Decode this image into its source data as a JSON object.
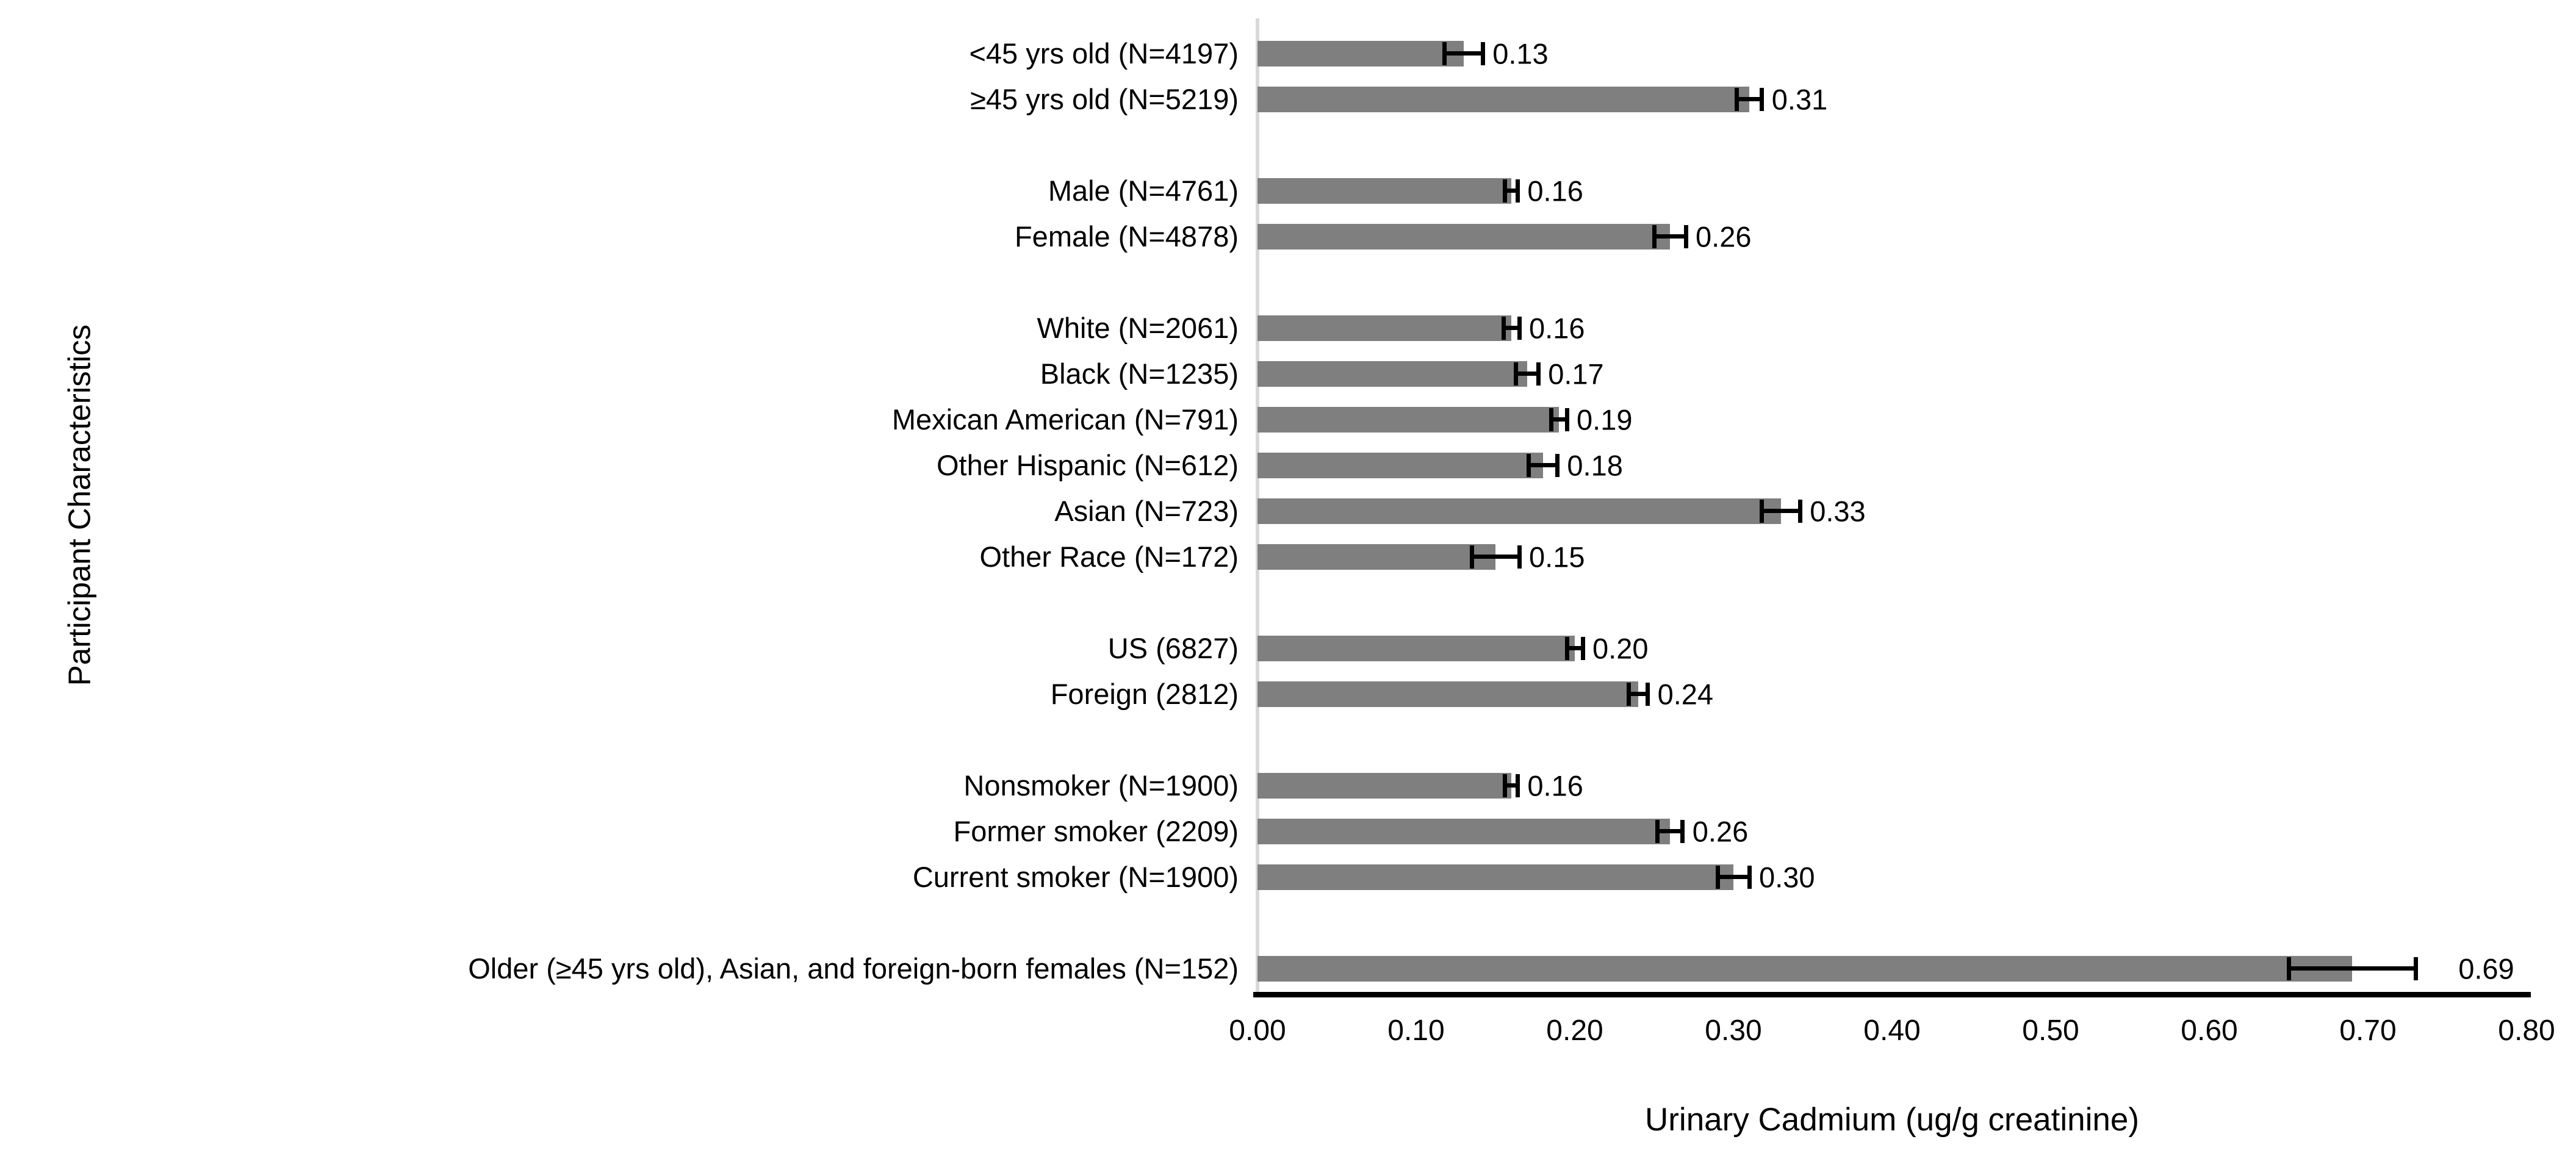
{
  "chart_data": {
    "type": "bar",
    "orientation": "horizontal",
    "title": "",
    "xlabel": "Urinary Cadmium (ug/g creatinine)",
    "ylabel": "Participant Characteristics",
    "xlim": [
      0.0,
      0.8
    ],
    "xticks": [
      "0.00",
      "0.10",
      "0.20",
      "0.30",
      "0.40",
      "0.50",
      "0.60",
      "0.70",
      "0.80"
    ],
    "grid": false,
    "legend": false,
    "bar_color": "#7F7F7F",
    "error_bar_color": "#000000",
    "zero_line_color": "#D9D9D9",
    "axis_line_color": "#000000",
    "groups": [
      {
        "name": "age",
        "items": [
          {
            "label": "<45 yrs old (N=4197)",
            "value": 0.13,
            "error": 0.012,
            "value_label": "0.13"
          },
          {
            "label": "≥45 yrs old (N=5219)",
            "value": 0.31,
            "error": 0.008,
            "value_label": "0.31"
          }
        ]
      },
      {
        "name": "sex",
        "items": [
          {
            "label": "Male (N=4761)",
            "value": 0.16,
            "error": 0.004,
            "value_label": "0.16"
          },
          {
            "label": "Female (N=4878)",
            "value": 0.26,
            "error": 0.01,
            "value_label": "0.26"
          }
        ]
      },
      {
        "name": "race-ethnicity",
        "items": [
          {
            "label": "White (N=2061)",
            "value": 0.16,
            "error": 0.005,
            "value_label": "0.16"
          },
          {
            "label": "Black (N=1235)",
            "value": 0.17,
            "error": 0.007,
            "value_label": "0.17"
          },
          {
            "label": "Mexican American (N=791)",
            "value": 0.19,
            "error": 0.005,
            "value_label": "0.19"
          },
          {
            "label": "Other Hispanic (N=612)",
            "value": 0.18,
            "error": 0.009,
            "value_label": "0.18"
          },
          {
            "label": "Asian (N=723)",
            "value": 0.33,
            "error": 0.012,
            "value_label": "0.33"
          },
          {
            "label": "Other Race (N=172)",
            "value": 0.15,
            "error": 0.015,
            "value_label": "0.15"
          }
        ]
      },
      {
        "name": "birthplace",
        "items": [
          {
            "label": "US (6827)",
            "value": 0.2,
            "error": 0.005,
            "value_label": "0.20"
          },
          {
            "label": "Foreign (2812)",
            "value": 0.24,
            "error": 0.006,
            "value_label": "0.24"
          }
        ]
      },
      {
        "name": "smoking",
        "items": [
          {
            "label": "Nonsmoker (N=1900)",
            "value": 0.16,
            "error": 0.004,
            "value_label": "0.16"
          },
          {
            "label": "Former smoker (2209)",
            "value": 0.26,
            "error": 0.008,
            "value_label": "0.26"
          },
          {
            "label": "Current smoker (N=1900)",
            "value": 0.3,
            "error": 0.01,
            "value_label": "0.30"
          }
        ]
      },
      {
        "name": "combined-subgroup",
        "items": [
          {
            "label": "Older (≥45 yrs old), Asian, and foreign-born females (N=152)",
            "value": 0.69,
            "error": 0.04,
            "value_label": "0.69",
            "label_x": 0.757
          }
        ]
      }
    ]
  }
}
